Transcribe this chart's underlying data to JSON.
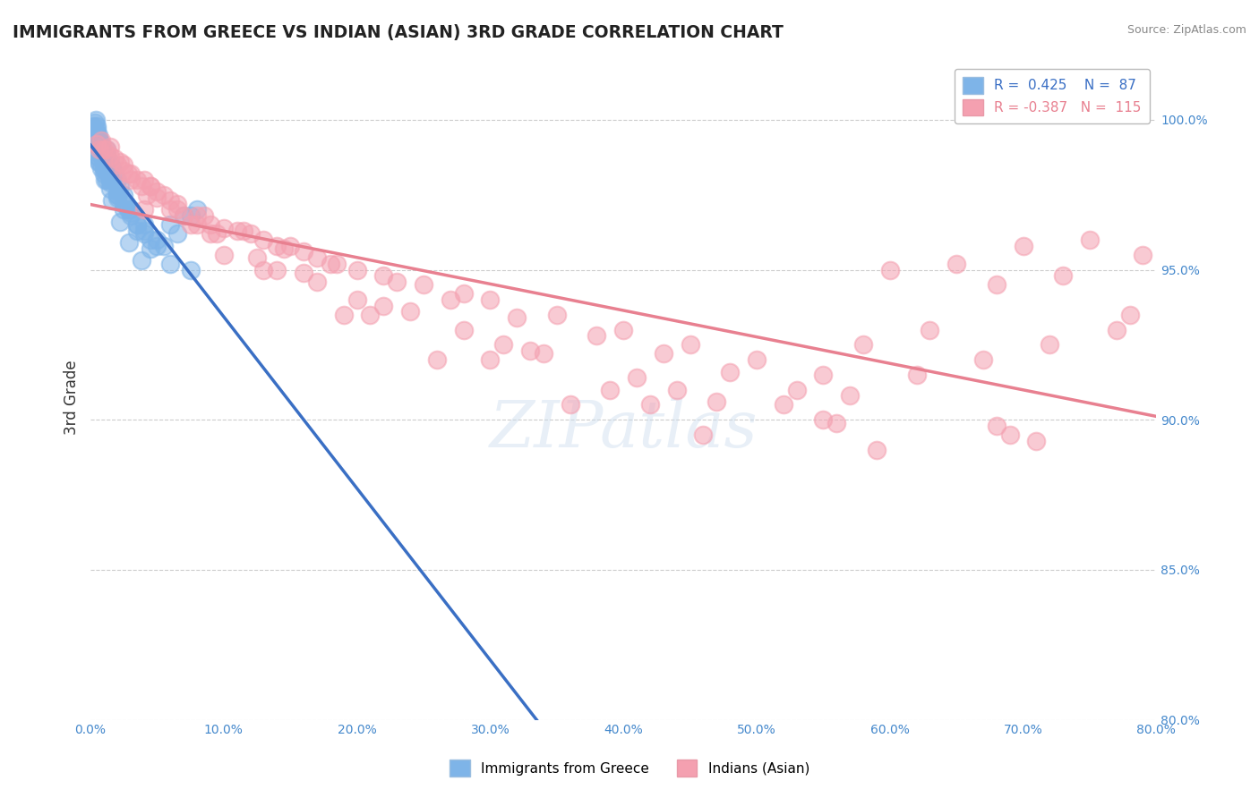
{
  "title": "IMMIGRANTS FROM GREECE VS INDIAN (ASIAN) 3RD GRADE CORRELATION CHART",
  "source_text": "Source: ZipAtlas.com",
  "ylabel": "3rd Grade",
  "x_min": 0.0,
  "x_max": 80.0,
  "y_min": 80.0,
  "y_max": 101.5,
  "y_ticks": [
    80.0,
    85.0,
    90.0,
    95.0,
    100.0
  ],
  "x_ticks": [
    0.0,
    10.0,
    20.0,
    30.0,
    40.0,
    50.0,
    60.0,
    70.0,
    80.0
  ],
  "blue_R": 0.425,
  "blue_N": 87,
  "pink_R": -0.387,
  "pink_N": 115,
  "blue_color": "#7EB4E8",
  "pink_color": "#F4A0B0",
  "blue_line_color": "#3A6FC4",
  "pink_line_color": "#E88090",
  "legend_label_blue": "Immigrants from Greece",
  "legend_label_pink": "Indians (Asian)",
  "watermark": "ZIPatlas",
  "background_color": "#ffffff",
  "title_color": "#222222",
  "title_fontsize": 13.5,
  "tick_label_color": "#4488CC",
  "grid_color": "#CCCCCC",
  "blue_scatter_x": [
    0.3,
    0.4,
    0.5,
    0.6,
    0.7,
    0.8,
    1.0,
    1.1,
    1.2,
    1.3,
    1.5,
    1.6,
    1.8,
    2.0,
    2.2,
    2.5,
    2.7,
    0.2,
    0.3,
    0.4,
    0.5,
    0.6,
    0.8,
    1.0,
    1.4,
    1.6,
    2.0,
    2.8,
    3.5,
    0.5,
    0.7,
    1.0,
    1.5,
    2.0,
    3.0,
    4.0,
    5.0,
    6.0,
    7.0,
    8.0,
    0.3,
    0.6,
    0.9,
    1.2,
    0.4,
    0.5,
    0.7,
    0.9,
    1.1,
    1.3,
    0.2,
    0.3,
    0.5,
    0.8,
    1.0,
    1.5,
    2.5,
    3.5,
    4.5,
    5.5,
    6.5,
    7.5,
    0.6,
    1.2,
    2.0,
    3.0,
    4.0,
    0.5,
    1.0,
    2.0,
    3.0,
    4.0,
    5.0,
    0.8,
    1.5,
    2.5,
    3.5,
    4.5,
    6.0,
    7.5,
    0.3,
    0.7,
    1.1,
    1.6,
    2.2,
    2.9,
    3.8
  ],
  "blue_scatter_y": [
    99.5,
    99.6,
    99.7,
    99.4,
    99.3,
    99.0,
    98.8,
    98.9,
    99.0,
    98.5,
    98.6,
    98.4,
    98.2,
    98.0,
    97.8,
    97.5,
    97.2,
    99.8,
    99.9,
    100.0,
    99.8,
    99.5,
    99.2,
    98.8,
    98.5,
    98.0,
    97.5,
    97.0,
    96.5,
    99.0,
    98.7,
    98.4,
    98.0,
    97.6,
    97.0,
    96.5,
    96.0,
    96.5,
    96.8,
    97.0,
    99.3,
    99.1,
    98.8,
    98.5,
    99.6,
    99.4,
    99.2,
    98.9,
    98.6,
    98.2,
    99.7,
    99.5,
    99.2,
    98.8,
    98.4,
    97.9,
    97.2,
    96.5,
    96.0,
    95.8,
    96.2,
    96.8,
    98.6,
    98.0,
    97.4,
    96.8,
    96.2,
    98.8,
    98.2,
    97.5,
    96.9,
    96.3,
    95.8,
    98.4,
    97.7,
    97.0,
    96.3,
    95.7,
    95.2,
    95.0,
    99.2,
    98.6,
    98.0,
    97.3,
    96.6,
    95.9,
    95.3
  ],
  "pink_scatter_x": [
    0.5,
    1.0,
    1.5,
    2.0,
    2.5,
    3.0,
    3.5,
    4.0,
    4.5,
    5.0,
    5.5,
    6.0,
    6.5,
    7.0,
    8.0,
    9.0,
    10.0,
    11.0,
    12.0,
    13.0,
    14.0,
    15.0,
    16.0,
    17.0,
    18.0,
    20.0,
    22.0,
    25.0,
    28.0,
    30.0,
    35.0,
    40.0,
    45.0,
    50.0,
    55.0,
    60.0,
    65.0,
    70.0,
    75.0,
    1.2,
    1.8,
    2.8,
    4.2,
    6.5,
    8.5,
    11.5,
    14.5,
    18.5,
    23.0,
    27.0,
    32.0,
    38.0,
    43.0,
    48.0,
    53.0,
    58.0,
    63.0,
    68.0,
    73.0,
    78.0,
    0.8,
    2.2,
    3.8,
    6.0,
    9.0,
    12.5,
    17.0,
    22.0,
    28.0,
    34.0,
    41.0,
    47.0,
    52.0,
    57.0,
    62.0,
    67.0,
    72.0,
    77.0,
    1.5,
    4.5,
    8.0,
    14.0,
    21.0,
    30.0,
    42.0,
    55.0,
    68.0,
    0.7,
    2.5,
    5.0,
    9.5,
    16.0,
    24.0,
    33.0,
    44.0,
    56.0,
    69.0,
    3.0,
    7.5,
    13.0,
    19.0,
    26.0,
    36.0,
    46.0,
    59.0,
    71.0,
    79.0,
    4.0,
    10.0,
    20.0,
    31.0,
    39.0
  ],
  "pink_scatter_y": [
    99.2,
    99.0,
    98.8,
    98.5,
    98.5,
    98.2,
    98.0,
    98.0,
    97.8,
    97.6,
    97.5,
    97.3,
    97.0,
    96.8,
    96.8,
    96.5,
    96.4,
    96.3,
    96.2,
    96.0,
    95.8,
    95.8,
    95.6,
    95.4,
    95.2,
    95.0,
    94.8,
    94.5,
    94.2,
    94.0,
    93.5,
    93.0,
    92.5,
    92.0,
    91.5,
    95.0,
    95.2,
    95.8,
    96.0,
    99.0,
    98.7,
    98.2,
    97.5,
    97.2,
    96.8,
    96.3,
    95.7,
    95.2,
    94.6,
    94.0,
    93.4,
    92.8,
    92.2,
    91.6,
    91.0,
    92.5,
    93.0,
    94.5,
    94.8,
    93.5,
    99.3,
    98.6,
    97.8,
    97.0,
    96.2,
    95.4,
    94.6,
    93.8,
    93.0,
    92.2,
    91.4,
    90.6,
    90.5,
    90.8,
    91.5,
    92.0,
    92.5,
    93.0,
    99.1,
    97.8,
    96.5,
    95.0,
    93.5,
    92.0,
    90.5,
    90.0,
    89.8,
    99.0,
    98.3,
    97.4,
    96.2,
    94.9,
    93.6,
    92.3,
    91.0,
    89.9,
    89.5,
    98.0,
    96.5,
    95.0,
    93.5,
    92.0,
    90.5,
    89.5,
    89.0,
    89.3,
    95.5,
    97.0,
    95.5,
    94.0,
    92.5,
    91.0
  ]
}
